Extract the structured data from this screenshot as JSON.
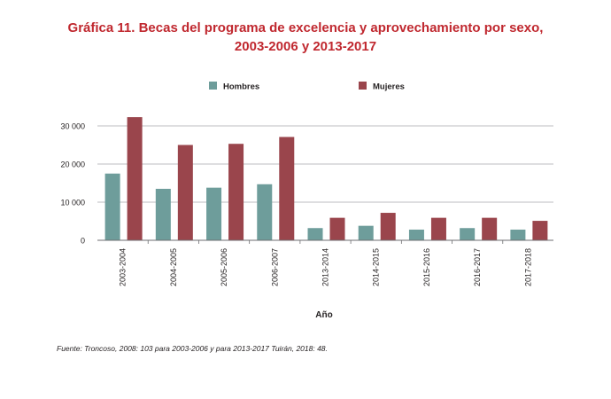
{
  "title_line1": "Gráfica 11. Becas del programa de excelencia y aprovechamiento por sexo,",
  "title_line2": "2003-2006 y 2013-2017",
  "source": "Fuente: Troncoso, 2008: 103 para 2003-2006 y para 2013-2017 Tuirán, 2018: 48.",
  "chart_data": {
    "type": "bar",
    "categories": [
      "2003-2004",
      "2004-2005",
      "2005-2006",
      "2006-2007",
      "2013-2014",
      "2014-2015",
      "2015-2016",
      "2016-2017",
      "2017-2018"
    ],
    "series": [
      {
        "name": "Hombres",
        "color": "#6e9d9b",
        "values": [
          17500,
          13500,
          13800,
          14700,
          3200,
          3800,
          2800,
          3200,
          2800
        ]
      },
      {
        "name": "Mujeres",
        "color": "#9a454c",
        "values": [
          32300,
          25000,
          25300,
          27100,
          5900,
          7200,
          5900,
          5900,
          5100
        ]
      }
    ],
    "xlabel": "Año",
    "ylabel": "",
    "ylim": [
      0,
      30000
    ],
    "yticks": [
      0,
      10000,
      20000,
      30000
    ],
    "ytick_labels": [
      "0",
      "10 000",
      "20 000",
      "30 000"
    ],
    "grid": true,
    "legend": "top-center"
  }
}
